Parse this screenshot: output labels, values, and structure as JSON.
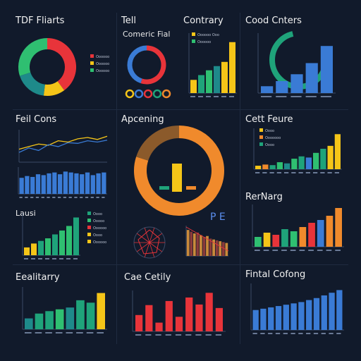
{
  "colors": {
    "bg": "#111a2b",
    "teal": "#1fa37a",
    "green": "#2fbf71",
    "yellow": "#f5c518",
    "red": "#e8343a",
    "blue": "#3a7bd5",
    "orange": "#f08a2c",
    "brown": "#8b5a2b",
    "dteal": "#1e8a8a"
  },
  "panels": {
    "p1": {
      "title": "TDF Fliarts"
    },
    "p2": {
      "title": "Tell",
      "subtitle": "Comeric Fial"
    },
    "p3": {
      "title": "Contrary"
    },
    "p4": {
      "title": "Cood Cnters"
    },
    "p5": {
      "title": "Feil Cons"
    },
    "p6": {
      "title": "Apcening"
    },
    "p7": {
      "title": "Cett Feure"
    },
    "p8": {
      "title": "Lausi"
    },
    "p9": {
      "title": "RerNarg"
    },
    "p10": {
      "title": "Eealitarry"
    },
    "p11": {
      "title": "Cae Cetily"
    },
    "p12": {
      "title": "Fintal Cofong"
    },
    "p6_annotation": "P E"
  },
  "chart_data": [
    {
      "id": "c1",
      "type": "pie",
      "donut": true,
      "slices": [
        {
          "value": 40,
          "color": "#e8343a"
        },
        {
          "value": 12,
          "color": "#f5c518"
        },
        {
          "value": 18,
          "color": "#1e8a8a"
        },
        {
          "value": 30,
          "color": "#2fbf71"
        }
      ],
      "legend": [
        "Oooooo",
        "Oooooo",
        "Oooooo"
      ]
    },
    {
      "id": "c2",
      "type": "pie",
      "donut": true,
      "slices": [
        {
          "value": 55,
          "color": "#e8343a"
        },
        {
          "value": 45,
          "color": "#3a7bd5"
        }
      ]
    },
    {
      "id": "c3",
      "type": "bar",
      "values": [
        22,
        30,
        38,
        45,
        52,
        85
      ],
      "colors": [
        "#f5c518",
        "#1fa37a",
        "#2fbf71",
        "#1e8a8a",
        "#f5c518",
        "#f5c518"
      ],
      "legend": [
        "Oooooo Ooo",
        "Oooooo"
      ],
      "ylim": [
        0,
        100
      ]
    },
    {
      "id": "c4",
      "type": "bar",
      "values": [
        8,
        14,
        22,
        35,
        55
      ],
      "colors": [
        "#3a7bd5",
        "#3a7bd5",
        "#3a7bd5",
        "#3a7bd5",
        "#3a7bd5"
      ],
      "ylim": [
        0,
        70
      ]
    },
    {
      "id": "c5",
      "type": "line",
      "series": [
        {
          "color": "#f5c518",
          "values": [
            20,
            24,
            28,
            26,
            33,
            31,
            36,
            38,
            35,
            40
          ]
        },
        {
          "color": "#3a7bd5",
          "values": [
            15,
            22,
            18,
            27,
            24,
            30,
            29,
            33,
            31,
            34
          ]
        }
      ],
      "ylim": [
        0,
        50
      ]
    },
    {
      "id": "c6",
      "type": "bar",
      "values": [
        18,
        20,
        19,
        22,
        21,
        23,
        24,
        22,
        25,
        24,
        23,
        22,
        24,
        21,
        23,
        24
      ],
      "colors": [
        "#3a7bd5"
      ],
      "ylim": [
        0,
        30
      ]
    },
    {
      "id": "c7",
      "type": "pie",
      "donut": true,
      "slices": [
        {
          "value": 80,
          "color": "#f08a2c"
        },
        {
          "value": 20,
          "color": "#8b5a2b"
        }
      ]
    },
    {
      "id": "c8",
      "type": "bar",
      "values": [
        6,
        8,
        7,
        12,
        10,
        18,
        22,
        20,
        28,
        35,
        40,
        60
      ],
      "colors": [
        "#f5c518",
        "#f08a2c",
        "#1fa37a",
        "#2fbf71",
        "#1e8a8a",
        "#2fbf71",
        "#1fa37a",
        "#3a7bd5",
        "#2fbf71",
        "#1fa37a",
        "#f5c518",
        "#f5c518"
      ],
      "legend": [
        "Oooo",
        "Ooooooo",
        "Oooo"
      ],
      "ylim": [
        0,
        70
      ]
    },
    {
      "id": "c9",
      "type": "bar",
      "values": [
        12,
        18,
        22,
        26,
        32,
        38,
        45,
        58
      ],
      "colors": [
        "#f5c518",
        "#f5c518",
        "#1fa37a",
        "#2fbf71",
        "#1fa37a",
        "#2fbf71",
        "#2fbf71",
        "#1fa37a"
      ],
      "legend": [
        "Oooo",
        "Ooooo",
        "Oooooo",
        "Oooo",
        "Oooooo"
      ],
      "ylim": [
        0,
        65
      ]
    },
    {
      "id": "c10",
      "type": "bar",
      "values": [
        14,
        20,
        17,
        25,
        22,
        28,
        34,
        38,
        44,
        55
      ],
      "colors": [
        "#2fbf71",
        "#f5c518",
        "#e8343a",
        "#1fa37a",
        "#2fbf71",
        "#f08a2c",
        "#e8343a",
        "#3a7bd5",
        "#f08a2c",
        "#f08a2c"
      ],
      "ylim": [
        0,
        60
      ]
    },
    {
      "id": "c11",
      "type": "bar",
      "values": [
        18,
        26,
        30,
        33,
        36,
        48,
        44,
        60
      ],
      "colors": [
        "#1e8a8a",
        "#1fa37a",
        "#1fa37a",
        "#2fbf71",
        "#1e8a8a",
        "#1fa37a",
        "#1fa37a",
        "#f5c518"
      ],
      "ylim": [
        0,
        70
      ]
    },
    {
      "id": "c12",
      "type": "bar",
      "values": [
        28,
        45,
        15,
        52,
        25,
        58,
        46,
        66,
        40
      ],
      "colors": [
        "#e8343a"
      ],
      "ylim": [
        0,
        70
      ]
    },
    {
      "id": "c13",
      "type": "bar",
      "values": [
        30,
        32,
        34,
        36,
        38,
        40,
        42,
        45,
        48,
        52,
        56,
        60
      ],
      "colors": [
        "#3a7bd5"
      ],
      "ylim": [
        0,
        70
      ]
    },
    {
      "id": "c14",
      "type": "bar",
      "values": [
        30,
        28,
        26,
        27,
        24,
        22,
        23,
        20,
        19,
        18,
        17,
        16,
        15
      ],
      "colors": [
        "#c98a3a",
        "#8b3a3a"
      ],
      "ylim": [
        0,
        35
      ]
    }
  ]
}
